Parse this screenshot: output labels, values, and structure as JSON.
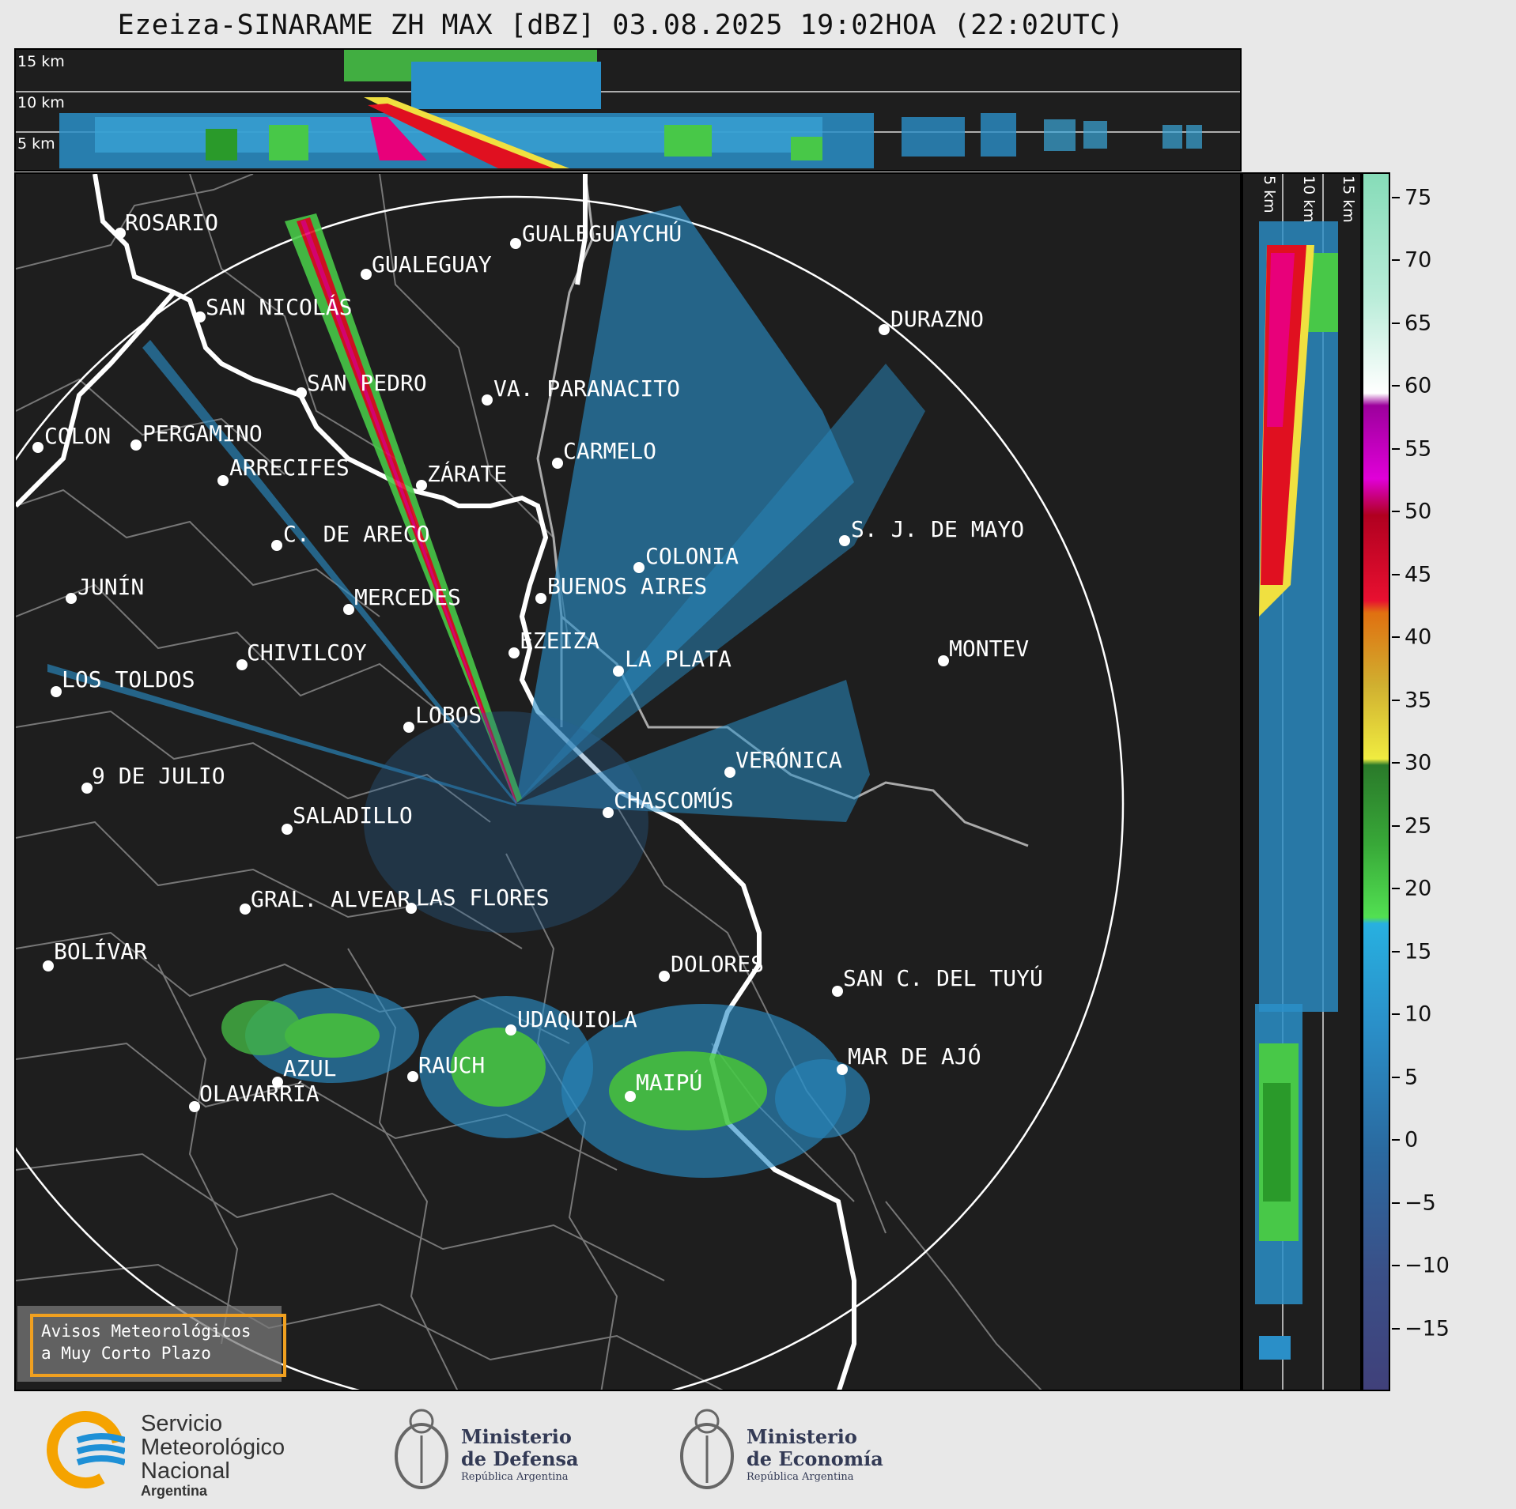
{
  "title": "Ezeiza-SINARAME ZH MAX [dBZ] 03.08.2025 19:02HOA (22:02UTC)",
  "top_panel": {
    "height_labels": [
      "15 km",
      "10 km",
      "5 km"
    ]
  },
  "side_panel": {
    "height_labels": [
      "5 km",
      "10 km",
      "15 km"
    ]
  },
  "cities": [
    {
      "name": "ROSARIO"
    },
    {
      "name": "GUALEGUAYCHÚ"
    },
    {
      "name": "GUALEGUAY"
    },
    {
      "name": "SAN NICOLÁS"
    },
    {
      "name": "DURAZNO"
    },
    {
      "name": "SAN PEDRO"
    },
    {
      "name": "VA. PARANACITO"
    },
    {
      "name": "COLON"
    },
    {
      "name": "PERGAMINO"
    },
    {
      "name": "CARMELO"
    },
    {
      "name": "ARRECIFES"
    },
    {
      "name": "ZÁRATE"
    },
    {
      "name": "C. DE ARECO"
    },
    {
      "name": "S. J. DE MAYO"
    },
    {
      "name": "COLONIA"
    },
    {
      "name": "JUNÍN"
    },
    {
      "name": "BUENOS AIRES"
    },
    {
      "name": "MERCEDES"
    },
    {
      "name": "EZEIZA"
    },
    {
      "name": "MONTEV"
    },
    {
      "name": "CHIVILCOY"
    },
    {
      "name": "LA PLATA"
    },
    {
      "name": "LOS TOLDOS"
    },
    {
      "name": "LOBOS"
    },
    {
      "name": "VERÓNICA"
    },
    {
      "name": "9 DE JULIO"
    },
    {
      "name": "CHASCOMÚS"
    },
    {
      "name": "SALADILLO"
    },
    {
      "name": "GRAL. ALVEAR"
    },
    {
      "name": "LAS FLORES"
    },
    {
      "name": "BOLÍVAR"
    },
    {
      "name": "DOLORES"
    },
    {
      "name": "SAN C. DEL TUYÚ"
    },
    {
      "name": "UDAQUIOLA"
    },
    {
      "name": "MAR DE AJÓ"
    },
    {
      "name": "AZUL"
    },
    {
      "name": "RAUCH"
    },
    {
      "name": "MAIPÚ"
    },
    {
      "name": "OLAVARRÍA"
    }
  ],
  "colorbar": {
    "unit": "dBZ",
    "ticks": [
      "75",
      "70",
      "65",
      "60",
      "55",
      "50",
      "45",
      "40",
      "35",
      "30",
      "25",
      "20",
      "15",
      "10",
      "5",
      "0",
      "−5",
      "−10",
      "−15"
    ],
    "range": [
      -20,
      77
    ]
  },
  "warning_box": {
    "line1": "Avisos Meteorológicos",
    "line2": "a Muy Corto Plazo"
  },
  "logos": {
    "smn": {
      "line1": "Servicio",
      "line2": "Meteorológico",
      "line3": "Nacional",
      "line4": "Argentina"
    },
    "defensa": {
      "line1": "Ministerio",
      "line2": "de Defensa",
      "line3": "República Argentina"
    },
    "economia": {
      "line1": "Ministerio",
      "line2": "de Economía",
      "line3": "República Argentina"
    }
  },
  "colors": {
    "panel_bg": "#1e1e1e",
    "range_ring": "#ffffff",
    "brand_blue": "#1e90d6",
    "brand_orange": "#f5a300"
  }
}
